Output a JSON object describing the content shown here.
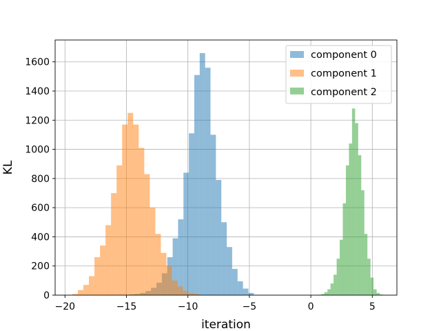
{
  "chart_data": {
    "type": "bar",
    "title": "",
    "xlabel": "iteration",
    "ylabel": "KL",
    "xlim": [
      -20.8,
      7.0
    ],
    "ylim": [
      0,
      1750
    ],
    "xticks": [
      -20,
      -15,
      -10,
      -5,
      0,
      5
    ],
    "xtick_labels": [
      "−20",
      "−15",
      "−10",
      "−5",
      "0",
      "5"
    ],
    "yticks": [
      0,
      200,
      400,
      600,
      800,
      1000,
      1200,
      1400,
      1600
    ],
    "ytick_labels": [
      "0",
      "200",
      "400",
      "600",
      "800",
      "1000",
      "1200",
      "1400",
      "1600"
    ],
    "grid": true,
    "legend_position": "top-right",
    "series": [
      {
        "name": "component 0",
        "color": "#1f77b4",
        "bin_edges": [
          -15.2,
          -14.76,
          -14.32,
          -13.88,
          -13.44,
          -13.0,
          -12.56,
          -12.12,
          -11.68,
          -11.24,
          -10.8,
          -10.36,
          -9.92,
          -9.48,
          -9.04,
          -8.6,
          -8.16,
          -7.72,
          -7.28,
          -6.84,
          -6.4,
          -5.96,
          -5.52,
          -5.08,
          -4.64
        ],
        "counts": [
          2,
          5,
          8,
          15,
          28,
          50,
          85,
          150,
          260,
          390,
          520,
          840,
          1110,
          1510,
          1660,
          1560,
          1100,
          790,
          500,
          330,
          180,
          95,
          45,
          15
        ]
      },
      {
        "name": "component 1",
        "color": "#ff7f0e",
        "bin_edges": [
          -19.4,
          -18.95,
          -18.5,
          -18.05,
          -17.6,
          -17.15,
          -16.7,
          -16.25,
          -15.8,
          -15.35,
          -14.9,
          -14.45,
          -14.0,
          -13.55,
          -13.1,
          -12.65,
          -12.2,
          -11.75,
          -11.3,
          -10.85,
          -10.4,
          -9.95,
          -9.5,
          -9.05
        ],
        "counts": [
          8,
          35,
          70,
          130,
          260,
          340,
          480,
          700,
          890,
          1170,
          1250,
          1170,
          1010,
          830,
          600,
          420,
          290,
          200,
          100,
          60,
          30,
          15,
          8
        ]
      },
      {
        "name": "component 2",
        "color": "#2ca02c",
        "bin_edges": [
          0.6,
          0.85,
          1.1,
          1.35,
          1.6,
          1.85,
          2.1,
          2.35,
          2.6,
          2.85,
          3.1,
          3.35,
          3.6,
          3.85,
          4.1,
          4.35,
          4.6,
          4.85,
          5.1,
          5.35,
          5.6,
          5.85,
          6.1
        ],
        "counts": [
          3,
          8,
          20,
          40,
          80,
          140,
          250,
          380,
          630,
          890,
          1040,
          1280,
          1180,
          960,
          720,
          420,
          250,
          120,
          40,
          15,
          5,
          2
        ]
      }
    ]
  }
}
